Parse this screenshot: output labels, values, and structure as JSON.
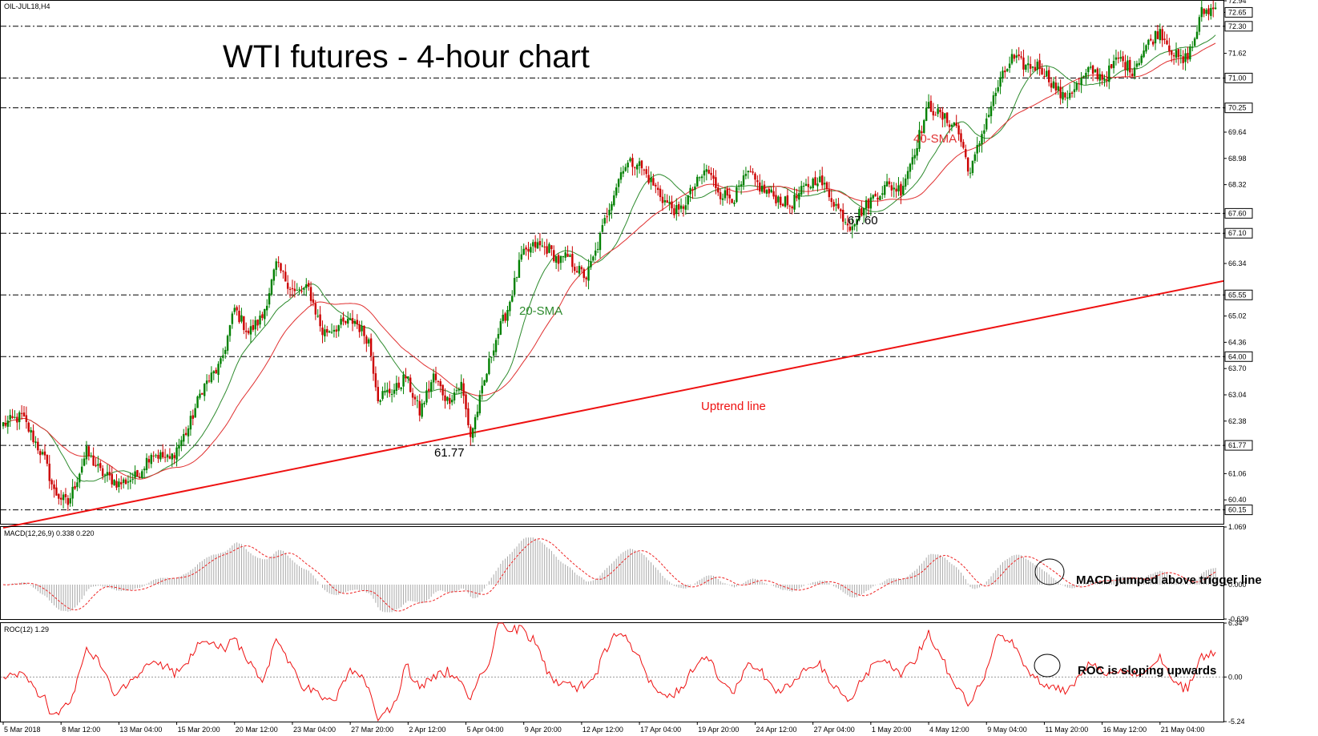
{
  "colors": {
    "bull": "#008000",
    "bear": "#cc0000",
    "sma20": "#2e8b2e",
    "sma40": "#e03030",
    "trend": "#ee1111",
    "hist": "#a8a8a8",
    "signal": "#ee2222",
    "roc": "#ee1111",
    "grid": "#000000"
  },
  "header": {
    "symbol": "OIL-JUL18,H4",
    "title": "WTI futures - 4-hour chart"
  },
  "annotations": {
    "sma20": "20-SMA",
    "sma40": "40-SMA",
    "uptrend": "Uptrend line",
    "low1": "61.77",
    "low2": "67.60",
    "macd_note": "MACD jumped above trigger line",
    "roc_note": "ROC is sloping upwards"
  },
  "chart_data": [
    {
      "type": "candlestick",
      "title": "WTI futures - 4-hour chart",
      "symbol": "OIL-JUL18,H4",
      "ylim": [
        59.8,
        72.94
      ],
      "y_ticks": [
        "72.94",
        "72.65",
        "72.30",
        "71.62",
        "71.00",
        "70.25",
        "69.64",
        "68.98",
        "68.32",
        "67.60",
        "67.10",
        "66.34",
        "65.55",
        "65.02",
        "64.36",
        "64.00",
        "63.70",
        "63.04",
        "62.38",
        "61.77",
        "61.06",
        "60.40",
        "60.15"
      ],
      "highlighted_levels": [
        "72.30",
        "71.00",
        "70.25",
        "67.60",
        "67.10",
        "65.55",
        "64.00",
        "61.77",
        "60.15"
      ],
      "current_price": "72.65",
      "x_tick_labels": [
        "5 Mar 2018",
        "8 Mar 12:00",
        "13 Mar 04:00",
        "15 Mar 20:00",
        "20 Mar 12:00",
        "23 Mar 04:00",
        "27 Mar 20:00",
        "2 Apr 12:00",
        "5 Apr 04:00",
        "9 Apr 20:00",
        "12 Apr 12:00",
        "17 Apr 04:00",
        "19 Apr 20:00",
        "24 Apr 12:00",
        "27 Apr 04:00",
        "1 May 20:00",
        "4 May 12:00",
        "9 May 04:00",
        "11 May 20:00",
        "16 May 12:00",
        "21 May 04:00"
      ],
      "close_path": [
        [
          0,
          62.3
        ],
        [
          8,
          62.5
        ],
        [
          18,
          61.4
        ],
        [
          22,
          60.6
        ],
        [
          28,
          60.3
        ],
        [
          36,
          61.6
        ],
        [
          42,
          61.1
        ],
        [
          50,
          60.8
        ],
        [
          58,
          61.0
        ],
        [
          64,
          61.6
        ],
        [
          72,
          61.4
        ],
        [
          80,
          62.2
        ],
        [
          86,
          63.2
        ],
        [
          94,
          63.8
        ],
        [
          100,
          65.2
        ],
        [
          106,
          64.6
        ],
        [
          112,
          65.0
        ],
        [
          118,
          66.3
        ],
        [
          126,
          65.6
        ],
        [
          132,
          65.7
        ],
        [
          138,
          64.6
        ],
        [
          146,
          64.8
        ],
        [
          152,
          64.9
        ],
        [
          158,
          64.4
        ],
        [
          162,
          63.0
        ],
        [
          170,
          63.2
        ],
        [
          174,
          63.5
        ],
        [
          180,
          62.6
        ],
        [
          186,
          63.5
        ],
        [
          192,
          62.9
        ],
        [
          198,
          63.3
        ],
        [
          202,
          62.0
        ],
        [
          206,
          62.9
        ],
        [
          212,
          64.3
        ],
        [
          218,
          65.2
        ],
        [
          224,
          66.5
        ],
        [
          230,
          66.8
        ],
        [
          236,
          66.7
        ],
        [
          240,
          66.4
        ],
        [
          244,
          66.5
        ],
        [
          248,
          66.2
        ],
        [
          252,
          66.0
        ],
        [
          256,
          66.6
        ],
        [
          262,
          67.8
        ],
        [
          268,
          68.8
        ],
        [
          274,
          68.9
        ],
        [
          280,
          68.4
        ],
        [
          286,
          67.9
        ],
        [
          292,
          67.6
        ],
        [
          298,
          68.2
        ],
        [
          304,
          68.7
        ],
        [
          310,
          68.1
        ],
        [
          316,
          68.0
        ],
        [
          322,
          68.6
        ],
        [
          328,
          68.2
        ],
        [
          334,
          68.0
        ],
        [
          340,
          67.8
        ],
        [
          346,
          68.2
        ],
        [
          352,
          68.5
        ],
        [
          358,
          68.0
        ],
        [
          362,
          67.6
        ],
        [
          366,
          67.3
        ],
        [
          370,
          67.6
        ],
        [
          376,
          68.0
        ],
        [
          382,
          68.3
        ],
        [
          388,
          68.2
        ],
        [
          394,
          69.2
        ],
        [
          400,
          70.3
        ],
        [
          406,
          70.0
        ],
        [
          412,
          69.8
        ],
        [
          418,
          68.6
        ],
        [
          424,
          69.8
        ],
        [
          430,
          70.8
        ],
        [
          436,
          71.5
        ],
        [
          442,
          71.3
        ],
        [
          448,
          71.3
        ],
        [
          452,
          71.0
        ],
        [
          458,
          70.5
        ],
        [
          464,
          70.8
        ],
        [
          470,
          71.2
        ],
        [
          476,
          71.0
        ],
        [
          482,
          71.5
        ],
        [
          488,
          71.2
        ],
        [
          494,
          71.8
        ],
        [
          500,
          72.2
        ],
        [
          506,
          71.6
        ],
        [
          510,
          71.4
        ],
        [
          514,
          71.8
        ],
        [
          518,
          72.65
        ],
        [
          524,
          72.75
        ]
      ],
      "series": [
        {
          "name": "20-SMA"
        },
        {
          "name": "40-SMA"
        },
        {
          "name": "Uptrend line",
          "points": [
            [
              "5 Mar 2018",
              59.7
            ],
            [
              "21 May 04:00",
              65.9
            ]
          ]
        }
      ],
      "annotated_lows": [
        61.77,
        67.6
      ]
    },
    {
      "type": "bar",
      "title": "MACD(12,26,9) 0.338 0.220",
      "indicator": "MACD(12,26,9)",
      "values_label": [
        "0.338",
        "0.220"
      ],
      "ylim": [
        -0.639,
        1.069
      ],
      "y_ticks": [
        "1.069",
        "0.000",
        "-0.639"
      ],
      "series": [
        {
          "name": "MACD"
        },
        {
          "name": "Signal"
        }
      ]
    },
    {
      "type": "line",
      "title": "ROC(12) 1.29",
      "indicator": "ROC(12)",
      "value_label": "1.29",
      "ylim": [
        -5.24,
        6.34
      ],
      "y_ticks": [
        "6.34",
        "0.00",
        "-5.24"
      ],
      "series": [
        {
          "name": "ROC"
        }
      ]
    }
  ]
}
